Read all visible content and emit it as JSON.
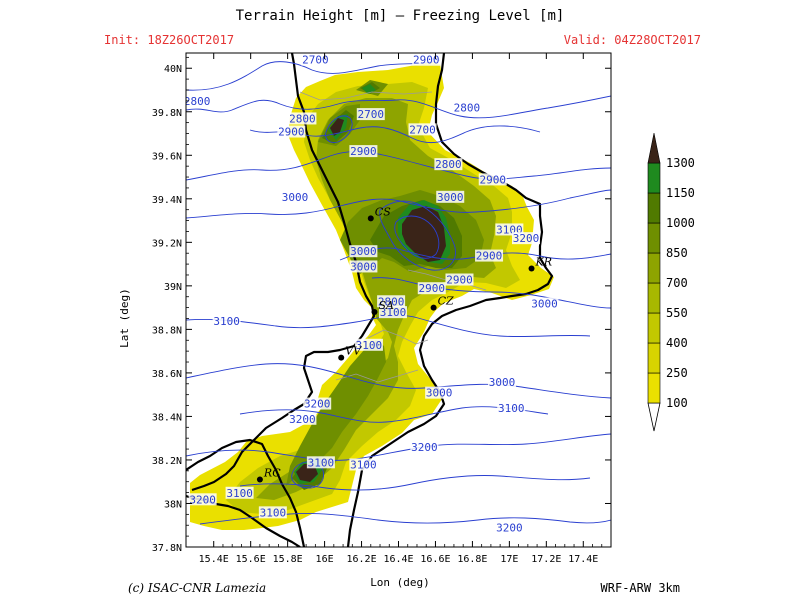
{
  "title": "Terrain Height [m] — Freezing Level [m]",
  "init": "Init: 18Z26OCT2017",
  "valid": "Valid: 04Z28OCT2017",
  "xlabel": "Lon (deg)",
  "ylabel": "Lat (deg)",
  "credit": "(c) ISAC-CNR Lamezia",
  "model": "WRF-ARW 3km",
  "colors": {
    "contour": "#2a3fd0",
    "coast": "#000000",
    "levels": [
      "#eae000",
      "#d8d400",
      "#c2c800",
      "#a8b800",
      "#8ea400",
      "#6f8f00",
      "#507a00",
      "#1f8a1f",
      "#3a2418"
    ]
  },
  "axes": {
    "lon_ticks": [
      "15.4E",
      "15.6E",
      "15.8E",
      "16E",
      "16.2E",
      "16.4E",
      "16.6E",
      "16.8E",
      "17E",
      "17.2E",
      "17.4E"
    ],
    "lat_ticks": [
      "37.8N",
      "38N",
      "38.2N",
      "38.4N",
      "38.6N",
      "38.8N",
      "39N",
      "39.2N",
      "39.4N",
      "39.6N",
      "39.8N",
      "40N"
    ]
  },
  "legend": {
    "labels": [
      "100",
      "250",
      "400",
      "550",
      "700",
      "850",
      "1000",
      "1150",
      "1300"
    ]
  },
  "contour_labels": [
    {
      "text": "2700",
      "lon": 15.95,
      "lat": 40.03
    },
    {
      "text": "2900",
      "lon": 16.55,
      "lat": 40.03
    },
    {
      "text": "2800",
      "lon": 15.31,
      "lat": 39.84
    },
    {
      "text": "2800",
      "lon": 15.88,
      "lat": 39.76
    },
    {
      "text": "2700",
      "lon": 16.25,
      "lat": 39.78
    },
    {
      "text": "2800",
      "lon": 16.77,
      "lat": 39.81
    },
    {
      "text": "2900",
      "lon": 15.82,
      "lat": 39.7
    },
    {
      "text": "2700",
      "lon": 16.53,
      "lat": 39.71
    },
    {
      "text": "2900",
      "lon": 16.21,
      "lat": 39.61
    },
    {
      "text": "2800",
      "lon": 16.67,
      "lat": 39.55
    },
    {
      "text": "2900",
      "lon": 16.91,
      "lat": 39.48
    },
    {
      "text": "3000",
      "lon": 15.84,
      "lat": 39.4
    },
    {
      "text": "3000",
      "lon": 16.68,
      "lat": 39.4
    },
    {
      "text": "3100",
      "lon": 17.0,
      "lat": 39.25
    },
    {
      "text": "3200",
      "lon": 17.09,
      "lat": 39.21
    },
    {
      "text": "3000",
      "lon": 16.21,
      "lat": 39.15
    },
    {
      "text": "2900",
      "lon": 16.89,
      "lat": 39.13
    },
    {
      "text": "3000",
      "lon": 16.21,
      "lat": 39.08
    },
    {
      "text": "2900",
      "lon": 16.73,
      "lat": 39.02
    },
    {
      "text": "2900",
      "lon": 16.58,
      "lat": 38.98
    },
    {
      "text": "2800",
      "lon": 16.36,
      "lat": 38.92
    },
    {
      "text": "3000",
      "lon": 17.19,
      "lat": 38.91
    },
    {
      "text": "3100",
      "lon": 16.37,
      "lat": 38.87
    },
    {
      "text": "3100",
      "lon": 15.47,
      "lat": 38.83
    },
    {
      "text": "3100",
      "lon": 16.24,
      "lat": 38.72
    },
    {
      "text": "3000",
      "lon": 16.96,
      "lat": 38.55
    },
    {
      "text": "3000",
      "lon": 16.62,
      "lat": 38.5
    },
    {
      "text": "3200",
      "lon": 15.96,
      "lat": 38.45
    },
    {
      "text": "3100",
      "lon": 17.01,
      "lat": 38.43
    },
    {
      "text": "3200",
      "lon": 15.88,
      "lat": 38.38
    },
    {
      "text": "3200",
      "lon": 16.54,
      "lat": 38.25
    },
    {
      "text": "3100",
      "lon": 15.98,
      "lat": 38.18
    },
    {
      "text": "3100",
      "lon": 16.21,
      "lat": 38.17
    },
    {
      "text": "3100",
      "lon": 15.54,
      "lat": 38.04
    },
    {
      "text": "3200",
      "lon": 15.34,
      "lat": 38.01
    },
    {
      "text": "3100",
      "lon": 15.72,
      "lat": 37.95
    },
    {
      "text": "3200",
      "lon": 17.0,
      "lat": 37.88
    }
  ],
  "cities": [
    {
      "name": "CS",
      "lon": 16.25,
      "lat": 39.31
    },
    {
      "name": "KR",
      "lon": 17.12,
      "lat": 39.08
    },
    {
      "name": "SA",
      "lon": 16.27,
      "lat": 38.88
    },
    {
      "name": "CZ",
      "lon": 16.59,
      "lat": 38.9
    },
    {
      "name": "VV",
      "lon": 16.09,
      "lat": 38.67
    },
    {
      "name": "RC",
      "lon": 15.65,
      "lat": 38.11
    }
  ]
}
